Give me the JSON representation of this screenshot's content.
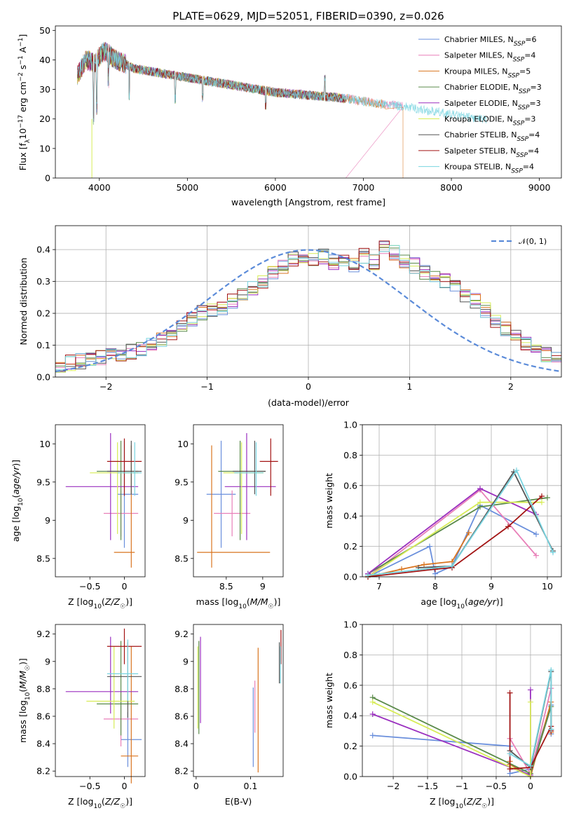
{
  "title": "PLATE=0629, MJD=52051, FIBERID=0390, z=0.026",
  "colors": [
    "#6a8fdc",
    "#e87fb8",
    "#d9741f",
    "#5a8a4a",
    "#9a2fbf",
    "#d7ec57",
    "#555555",
    "#a31515",
    "#78d4e0"
  ],
  "series_names": [
    "Chabrier MILES, N_SSP=6",
    "Salpeter MILES, N_SSP=4",
    "Kroupa MILES, N_SSP=5",
    "Chabrier ELODIE, N_SSP=3",
    "Salpeter ELODIE, N_SSP=3",
    "Kroupa ELODIE, N_SSP=3",
    "Chabrier STELIB, N_SSP=4",
    "Salpeter STELIB, N_SSP=4",
    "Kroupa STELIB, N_SSP=4"
  ],
  "chart_data": [
    {
      "id": "spectrum",
      "type": "line",
      "xlabel": "wavelength [Angstrom, rest frame]",
      "ylabel": "Flux [f_λ 10^-17 erg cm^-2 s^-1 A^-1]",
      "xlim": [
        3500,
        9250
      ],
      "ylim": [
        0,
        51.5
      ],
      "xticks": [
        4000,
        5000,
        6000,
        7000,
        8000,
        9000
      ],
      "yticks": [
        0,
        10,
        20,
        30,
        40,
        50
      ],
      "continuum": {
        "x": [
          3750,
          3850,
          3950,
          4050,
          4200,
          4400,
          4600,
          4800,
          5000,
          5200,
          5400,
          5600,
          5800,
          6000,
          6200,
          6400,
          6600,
          6800,
          7000,
          7200,
          7400,
          7600,
          7800,
          8000,
          8200,
          8400
        ],
        "y": [
          35,
          40,
          39,
          43,
          40,
          37,
          36,
          35,
          34,
          33,
          32,
          31,
          30,
          29,
          28.5,
          28,
          27.5,
          27,
          26,
          25,
          24.5,
          23.5,
          22.5,
          21.5,
          20.5,
          19.5
        ]
      },
      "ranges": [
        [
          3750,
          6800
        ],
        [
          3750,
          7450
        ],
        [
          3750,
          7250
        ],
        [
          3750,
          6800
        ],
        [
          3750,
          6800
        ],
        [
          3750,
          6800
        ],
        [
          3750,
          6800
        ],
        [
          3750,
          6800
        ],
        [
          3750,
          8400
        ]
      ],
      "grid": false,
      "legend": "top-right"
    },
    {
      "id": "residuals",
      "type": "histogram",
      "xlabel": "(data-model)/error",
      "ylabel": "Normed distribution",
      "xlim": [
        -2.5,
        2.5
      ],
      "ylim": [
        0,
        0.475
      ],
      "xticks": [
        -2,
        -1,
        0,
        1,
        2
      ],
      "yticks": [
        0.0,
        0.1,
        0.2,
        0.3,
        0.4
      ],
      "bin_width": 0.1,
      "bins_base": [
        0.04,
        0.045,
        0.05,
        0.055,
        0.06,
        0.07,
        0.075,
        0.08,
        0.09,
        0.1,
        0.12,
        0.14,
        0.16,
        0.18,
        0.2,
        0.21,
        0.22,
        0.24,
        0.26,
        0.28,
        0.3,
        0.33,
        0.35,
        0.37,
        0.38,
        0.37,
        0.38,
        0.36,
        0.37,
        0.35,
        0.38,
        0.36,
        0.41,
        0.39,
        0.36,
        0.35,
        0.33,
        0.32,
        0.3,
        0.29,
        0.26,
        0.24,
        0.21,
        0.18,
        0.15,
        0.13,
        0.1,
        0.08,
        0.07,
        0.06
      ],
      "normal_curve_label": "𝒩(0, 1)",
      "normal_curve_color": "#5b8bd9",
      "grid": true,
      "legend": "top-right"
    },
    {
      "id": "age-vs-Z",
      "type": "errorbar",
      "xlabel": "Z [log₁₀(Z/Z☉)]",
      "ylabel": "age  [log₁₀(age/yr)]",
      "xlim": [
        -1.0,
        0.3
      ],
      "ylim": [
        8.26,
        10.25
      ],
      "xticks": [
        -0.5,
        0.0
      ],
      "yticks": [
        8.5,
        9.0,
        9.5,
        10.0
      ],
      "points": [
        {
          "x": 0.0,
          "y": 9.34,
          "xerr": [
            0.1,
            0.2
          ],
          "yerr": [
            0.7,
            0.7
          ]
        },
        {
          "x": -0.05,
          "y": 9.09,
          "xerr": [
            0.25,
            0.25
          ],
          "yerr": [
            0.3,
            0.3
          ]
        },
        {
          "x": 0.1,
          "y": 8.58,
          "xerr": [
            0.25,
            0.05
          ],
          "yerr": [
            0.2,
            1.4
          ]
        },
        {
          "x": -0.05,
          "y": 9.64,
          "xerr": [
            0.35,
            0.25
          ],
          "yerr": [
            0.9,
            0.4
          ]
        },
        {
          "x": -0.2,
          "y": 9.44,
          "xerr": [
            0.65,
            0.4
          ],
          "yerr": [
            0.7,
            0.7
          ]
        },
        {
          "x": -0.1,
          "y": 9.62,
          "xerr": [
            0.4,
            0.3
          ],
          "yerr": [
            0.8,
            0.4
          ]
        },
        {
          "x": 0.1,
          "y": 9.64,
          "xerr": [
            0.35,
            0.15
          ],
          "yerr": [
            0.3,
            0.4
          ]
        },
        {
          "x": 0.0,
          "y": 9.77,
          "xerr": [
            0.25,
            0.25
          ],
          "yerr": [
            0.45,
            0.3
          ]
        },
        {
          "x": 0.15,
          "y": 9.62,
          "xerr": [
            0.25,
            0.1
          ],
          "yerr": [
            0.3,
            0.4
          ]
        }
      ]
    },
    {
      "id": "age-vs-mass",
      "type": "errorbar",
      "xlabel": "mass [log₁₀(M/M☉)]",
      "ylabel": "",
      "xlim": [
        8.05,
        9.28
      ],
      "ylim": [
        8.26,
        10.25
      ],
      "xticks": [
        8.5,
        9.0
      ],
      "yticks": [
        8.5,
        9.0,
        9.5,
        10.0
      ],
      "points": [
        {
          "x": 8.43,
          "y": 9.34,
          "xerr": [
            0.2,
            0.2
          ],
          "yerr": [
            0.7,
            0.7
          ]
        },
        {
          "x": 8.58,
          "y": 9.09,
          "xerr": [
            0.25,
            0.25
          ],
          "yerr": [
            0.3,
            0.3
          ]
        },
        {
          "x": 8.3,
          "y": 8.58,
          "xerr": [
            0.2,
            0.8
          ],
          "yerr": [
            0.2,
            1.4
          ]
        },
        {
          "x": 8.69,
          "y": 9.64,
          "xerr": [
            0.3,
            0.35
          ],
          "yerr": [
            0.9,
            0.4
          ]
        },
        {
          "x": 8.78,
          "y": 9.44,
          "xerr": [
            0.3,
            0.4
          ],
          "yerr": [
            0.7,
            0.7
          ]
        },
        {
          "x": 8.71,
          "y": 9.62,
          "xerr": [
            0.25,
            0.3
          ],
          "yerr": [
            0.8,
            0.4
          ]
        },
        {
          "x": 8.89,
          "y": 9.64,
          "xerr": [
            0.3,
            0.15
          ],
          "yerr": [
            0.3,
            0.4
          ]
        },
        {
          "x": 9.11,
          "y": 9.77,
          "xerr": [
            0.15,
            0.1
          ],
          "yerr": [
            0.45,
            0.3
          ]
        },
        {
          "x": 8.91,
          "y": 9.62,
          "xerr": [
            0.3,
            0.1
          ],
          "yerr": [
            0.3,
            0.4
          ]
        }
      ]
    },
    {
      "id": "mass-weight-vs-age",
      "type": "line",
      "xlabel": "age  [log₁₀(age/yr)]",
      "ylabel": "mass weight",
      "xlim": [
        6.7,
        10.25
      ],
      "ylim": [
        0,
        1.0
      ],
      "xticks": [
        7,
        8,
        9,
        10
      ],
      "yticks": [
        0.0,
        0.2,
        0.4,
        0.6,
        0.8,
        1.0
      ],
      "grid": true,
      "series": [
        {
          "x": [
            6.8,
            7.9,
            8.0,
            8.3,
            8.8,
            9.8
          ],
          "y": [
            0.0,
            0.2,
            0.02,
            0.07,
            0.47,
            0.28
          ]
        },
        {
          "x": [
            6.8,
            8.8,
            9.8
          ],
          "y": [
            0.0,
            0.57,
            0.14
          ]
        },
        {
          "x": [
            6.8,
            7.4,
            7.8,
            8.3,
            8.6
          ],
          "y": [
            0.0,
            0.05,
            0.08,
            0.1,
            0.29
          ]
        },
        {
          "x": [
            6.8,
            8.8,
            10.0
          ],
          "y": [
            0.02,
            0.46,
            0.52
          ]
        },
        {
          "x": [
            6.8,
            8.8,
            9.8
          ],
          "y": [
            0.02,
            0.58,
            0.41
          ]
        },
        {
          "x": [
            6.8,
            8.8,
            9.9
          ],
          "y": [
            0.0,
            0.49,
            0.49
          ]
        },
        {
          "x": [
            7.7,
            8.3,
            9.4,
            10.1
          ],
          "y": [
            0.06,
            0.07,
            0.69,
            0.17
          ]
        },
        {
          "x": [
            6.8,
            8.0,
            8.3,
            9.3,
            9.9
          ],
          "y": [
            0.0,
            0.05,
            0.06,
            0.33,
            0.53
          ]
        },
        {
          "x": [
            6.8,
            8.3,
            9.45,
            10.1
          ],
          "y": [
            0.01,
            0.07,
            0.7,
            0.16
          ]
        }
      ]
    },
    {
      "id": "mass-vs-Z",
      "type": "errorbar",
      "xlabel": "Z [log₁₀(Z/Z☉)]",
      "ylabel": "mass [log₁₀(M/M☉)]",
      "xlim": [
        -1.0,
        0.3
      ],
      "ylim": [
        8.16,
        9.27
      ],
      "xticks": [
        -0.5,
        0.0
      ],
      "yticks": [
        8.2,
        8.4,
        8.6,
        8.8,
        9.0,
        9.2
      ],
      "points": [
        {
          "x": 0.05,
          "y": 8.43,
          "xerr": [
            0.1,
            0.2
          ],
          "yerr": [
            0.2,
            0.2
          ]
        },
        {
          "x": -0.05,
          "y": 8.58,
          "xerr": [
            0.25,
            0.25
          ],
          "yerr": [
            0.2,
            0.2
          ]
        },
        {
          "x": 0.1,
          "y": 8.31,
          "xerr": [
            0.15,
            0.1
          ],
          "yerr": [
            0.2,
            0.8
          ]
        },
        {
          "x": -0.05,
          "y": 8.69,
          "xerr": [
            0.35,
            0.25
          ],
          "yerr": [
            0.23,
            0.46
          ]
        },
        {
          "x": -0.2,
          "y": 8.78,
          "xerr": [
            0.65,
            0.4
          ],
          "yerr": [
            0.16,
            0.4
          ]
        },
        {
          "x": -0.15,
          "y": 8.71,
          "xerr": [
            0.4,
            0.3
          ],
          "yerr": [
            0.2,
            0.4
          ]
        },
        {
          "x": 0.05,
          "y": 8.89,
          "xerr": [
            0.3,
            0.2
          ],
          "yerr": [
            0.3,
            0.25
          ]
        },
        {
          "x": 0.0,
          "y": 9.11,
          "xerr": [
            0.25,
            0.25
          ],
          "yerr": [
            0.13,
            0.13
          ]
        },
        {
          "x": 0.05,
          "y": 8.91,
          "xerr": [
            0.3,
            0.15
          ],
          "yerr": [
            0.2,
            0.25
          ]
        }
      ]
    },
    {
      "id": "mass-vs-ebv",
      "type": "errorbar",
      "xlabel": "E(B-V)",
      "ylabel": "",
      "xlim": [
        -0.005,
        0.16
      ],
      "ylim": [
        8.16,
        9.27
      ],
      "xticks": [
        0.0,
        0.1
      ],
      "yticks": [
        8.2,
        8.4,
        8.6,
        8.8,
        9.0,
        9.2
      ],
      "points": [
        {
          "x": 0.105,
          "y": 8.43,
          "xerr": [
            0,
            0
          ],
          "yerr": [
            0.2,
            0.38
          ]
        },
        {
          "x": 0.108,
          "y": 8.58,
          "xerr": [
            0,
            0
          ],
          "yerr": [
            0.1,
            0.28
          ]
        },
        {
          "x": 0.114,
          "y": 8.31,
          "xerr": [
            0,
            0
          ],
          "yerr": [
            0.12,
            0.79
          ]
        },
        {
          "x": 0.005,
          "y": 8.69,
          "xerr": [
            0,
            0
          ],
          "yerr": [
            0.22,
            0.46
          ]
        },
        {
          "x": 0.008,
          "y": 8.78,
          "xerr": [
            0,
            0
          ],
          "yerr": [
            0.23,
            0.4
          ]
        },
        {
          "x": 0.003,
          "y": 8.71,
          "xerr": [
            0,
            0
          ],
          "yerr": [
            0.2,
            0.4
          ]
        },
        {
          "x": 0.153,
          "y": 8.89,
          "xerr": [
            0,
            0
          ],
          "yerr": [
            0.05,
            0.25
          ]
        },
        {
          "x": 0.156,
          "y": 9.11,
          "xerr": [
            0,
            0
          ],
          "yerr": [
            0.13,
            0.12
          ]
        },
        {
          "x": 0.155,
          "y": 8.91,
          "xerr": [
            0,
            0
          ],
          "yerr": [
            0.07,
            0.2
          ]
        }
      ]
    },
    {
      "id": "mass-weight-vs-Z",
      "type": "line",
      "xlabel": "Z [log₁₀(Z/Z☉)]",
      "ylabel": "mass weight",
      "xlim": [
        -2.45,
        0.45
      ],
      "ylim": [
        0,
        1.0
      ],
      "xticks": [
        -2.0,
        -1.5,
        -1.0,
        -0.5,
        0.0
      ],
      "yticks": [
        0.0,
        0.2,
        0.4,
        0.6,
        0.8,
        1.0
      ],
      "grid": true,
      "series": [
        {
          "x": [
            -2.3,
            -0.3,
            -0.3,
            0.0,
            0.3,
            0.3
          ],
          "y": [
            0.27,
            0.2,
            0.02,
            0.05,
            0.47,
            0.28
          ]
        },
        {
          "x": [
            -0.3,
            0.0,
            0.3
          ],
          "y": [
            0.25,
            0.02,
            0.58
          ]
        },
        {
          "x": [
            -0.3,
            -0.3,
            0.0,
            0.3,
            0.3
          ],
          "y": [
            0.1,
            0.08,
            0.0,
            0.49,
            0.29
          ]
        },
        {
          "x": [
            -2.3,
            0.0,
            0.3
          ],
          "y": [
            0.52,
            0.02,
            0.46
          ]
        },
        {
          "x": [
            -2.3,
            0.0,
            0.0
          ],
          "y": [
            0.41,
            0.01,
            0.57
          ]
        },
        {
          "x": [
            -2.3,
            0.0,
            0.0
          ],
          "y": [
            0.49,
            0.0,
            0.49
          ]
        },
        {
          "x": [
            -0.3,
            0.0,
            0.3,
            0.3
          ],
          "y": [
            0.17,
            0.06,
            0.69,
            0.31
          ]
        },
        {
          "x": [
            -0.3,
            -0.3,
            0.0,
            0.3,
            0.3
          ],
          "y": [
            0.55,
            0.05,
            0.06,
            0.33,
            0.3
          ]
        },
        {
          "x": [
            -0.3,
            0.0,
            0.3,
            0.3
          ],
          "y": [
            0.15,
            0.07,
            0.7,
            0.31
          ]
        }
      ]
    }
  ]
}
